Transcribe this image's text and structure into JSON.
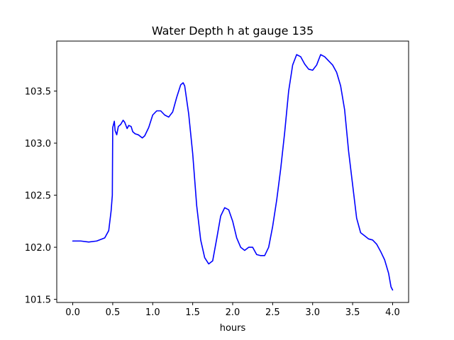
{
  "chart_data": {
    "type": "line",
    "title": "Water Depth h at gauge 135",
    "xlabel": "hours",
    "ylabel": "",
    "xlim": [
      -0.2,
      4.2
    ],
    "ylim": [
      101.47,
      103.98
    ],
    "xticks": [
      0.0,
      0.5,
      1.0,
      1.5,
      2.0,
      2.5,
      3.0,
      3.5,
      4.0
    ],
    "xtick_labels": [
      "0.0",
      "0.5",
      "1.0",
      "1.5",
      "2.0",
      "2.5",
      "3.0",
      "3.5",
      "4.0"
    ],
    "yticks": [
      101.5,
      102.0,
      102.5,
      103.0,
      103.5
    ],
    "ytick_labels": [
      "101.5",
      "102.0",
      "102.5",
      "103.0",
      "103.5"
    ],
    "grid": false,
    "series": [
      {
        "name": "",
        "color": "#0000ff",
        "x": [
          0.0,
          0.1,
          0.2,
          0.3,
          0.4,
          0.45,
          0.48,
          0.495,
          0.5,
          0.52,
          0.53,
          0.55,
          0.57,
          0.6,
          0.63,
          0.65,
          0.68,
          0.7,
          0.73,
          0.75,
          0.78,
          0.82,
          0.87,
          0.9,
          0.95,
          1.0,
          1.05,
          1.1,
          1.15,
          1.2,
          1.25,
          1.3,
          1.35,
          1.38,
          1.4,
          1.45,
          1.5,
          1.55,
          1.6,
          1.65,
          1.7,
          1.75,
          1.8,
          1.85,
          1.9,
          1.95,
          2.0,
          2.05,
          2.1,
          2.15,
          2.2,
          2.25,
          2.3,
          2.35,
          2.4,
          2.45,
          2.5,
          2.55,
          2.6,
          2.65,
          2.7,
          2.75,
          2.8,
          2.85,
          2.9,
          2.95,
          3.0,
          3.05,
          3.1,
          3.15,
          3.2,
          3.25,
          3.3,
          3.35,
          3.4,
          3.45,
          3.5,
          3.55,
          3.6,
          3.65,
          3.7,
          3.75,
          3.8,
          3.85,
          3.9,
          3.95,
          3.98,
          4.0
        ],
        "y": [
          102.06,
          102.06,
          102.05,
          102.06,
          102.09,
          102.16,
          102.35,
          102.5,
          103.15,
          103.21,
          103.12,
          103.08,
          103.16,
          103.18,
          103.22,
          103.2,
          103.14,
          103.17,
          103.16,
          103.11,
          103.09,
          103.08,
          103.05,
          103.07,
          103.15,
          103.27,
          103.31,
          103.31,
          103.27,
          103.25,
          103.3,
          103.44,
          103.56,
          103.58,
          103.55,
          103.28,
          102.9,
          102.4,
          102.07,
          101.9,
          101.84,
          101.87,
          102.08,
          102.3,
          102.38,
          102.36,
          102.25,
          102.09,
          102.0,
          101.97,
          102.0,
          102.0,
          101.93,
          101.92,
          101.92,
          102.0,
          102.2,
          102.45,
          102.75,
          103.1,
          103.5,
          103.75,
          103.85,
          103.83,
          103.76,
          103.71,
          103.7,
          103.75,
          103.85,
          103.83,
          103.79,
          103.75,
          103.68,
          103.55,
          103.32,
          102.92,
          102.6,
          102.28,
          102.14,
          102.11,
          102.08,
          102.07,
          102.03,
          101.96,
          101.88,
          101.75,
          101.62,
          101.59
        ]
      }
    ]
  }
}
